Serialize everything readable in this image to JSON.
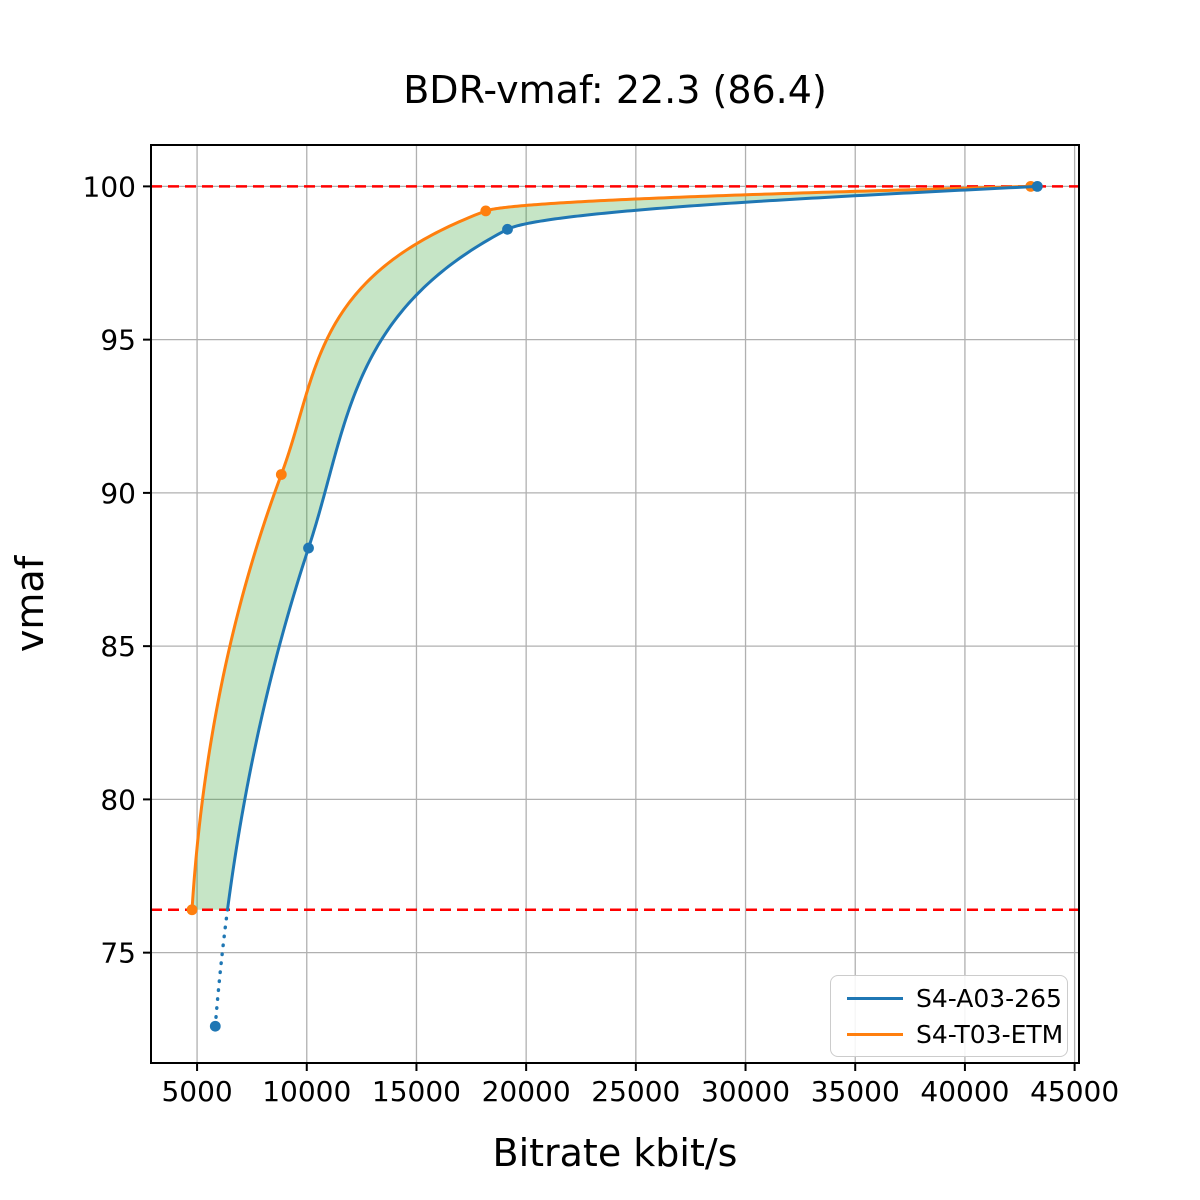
{
  "chart_data": {
    "type": "line",
    "title": "BDR-vmaf: 22.3 (86.4)",
    "xlabel": "Bitrate kbit/s",
    "ylabel": "vmaf",
    "xlim": [
      2900,
      45200
    ],
    "ylim": [
      71.4,
      101.35
    ],
    "x_ticks": [
      5000,
      10000,
      15000,
      20000,
      25000,
      30000,
      35000,
      40000,
      45000
    ],
    "y_ticks": [
      75,
      80,
      85,
      90,
      95,
      100
    ],
    "grid": true,
    "grid_color": "#b0b0b0",
    "axis_color": "#000000",
    "legend_position": "lower right",
    "series": [
      {
        "name": "S4-A03-265",
        "color": "#1f77b4",
        "points": [
          [
            5830,
            72.6
          ],
          [
            10080,
            88.2
          ],
          [
            19150,
            98.6
          ],
          [
            43300,
            100.0
          ]
        ]
      },
      {
        "name": "S4-T03-ETM",
        "color": "#ff7f0e",
        "points": [
          [
            4770,
            76.4
          ],
          [
            8840,
            90.6
          ],
          [
            18160,
            99.2
          ],
          [
            43000,
            100.0
          ]
        ]
      }
    ],
    "reference_lines": {
      "style": "dashed",
      "color": "#ff0000",
      "y_values": [
        76.4,
        100.0
      ]
    },
    "shaded_region": {
      "color": "#2ca02c",
      "opacity": 0.27,
      "between": "S4-T03-ETM and S4-A03-265 curves for vmaf in [76.4, 100.0]"
    }
  }
}
